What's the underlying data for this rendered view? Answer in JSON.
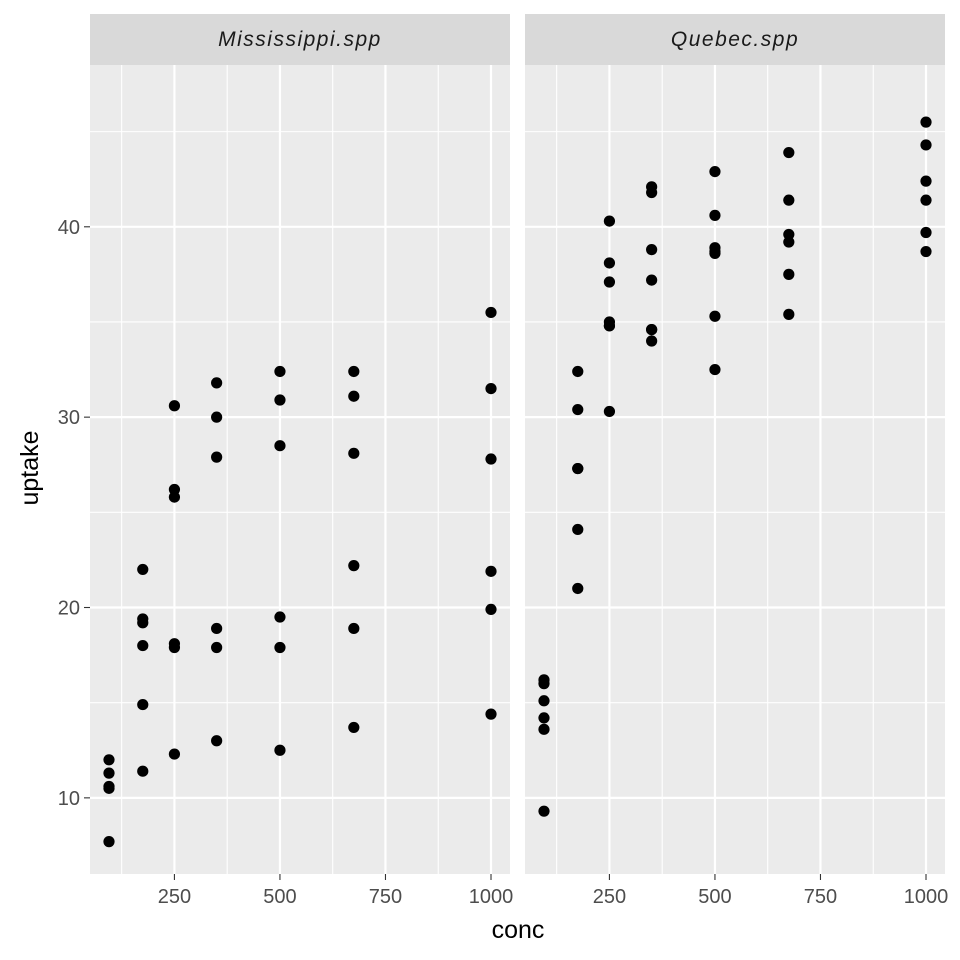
{
  "chart_data": {
    "type": "scatter",
    "xlabel": "conc",
    "ylabel": "uptake",
    "xlim": [
      50,
      1045
    ],
    "ylim": [
      6,
      48.5
    ],
    "x_ticks": [
      250,
      500,
      750,
      1000
    ],
    "y_ticks": [
      10,
      20,
      30,
      40
    ],
    "x_tick_labels": [
      "250",
      "500",
      "750",
      "1000"
    ],
    "y_tick_labels": [
      "10",
      "20",
      "30",
      "40"
    ],
    "grid": true,
    "point_color": "#000000",
    "panel_color": "#ebebeb",
    "strip_color": "#d9d9d9",
    "panels": [
      {
        "label": "Mississippi.spp",
        "x": [
          95,
          95,
          95,
          95,
          95,
          175,
          175,
          175,
          175,
          175,
          175,
          250,
          250,
          250,
          250,
          250,
          250,
          350,
          350,
          350,
          350,
          350,
          350,
          500,
          500,
          500,
          500,
          500,
          500,
          675,
          675,
          675,
          675,
          675,
          675,
          1000,
          1000,
          1000,
          1000,
          1000,
          1000
        ],
        "y": [
          12.0,
          11.3,
          10.6,
          10.5,
          7.7,
          22.0,
          19.4,
          19.2,
          18.0,
          14.9,
          11.4,
          30.6,
          26.2,
          25.8,
          18.1,
          17.9,
          12.3,
          31.8,
          30.0,
          27.9,
          18.9,
          17.9,
          13.0,
          32.4,
          30.9,
          28.5,
          19.5,
          17.9,
          12.5,
          32.4,
          31.1,
          28.1,
          22.2,
          18.9,
          13.7,
          35.5,
          31.5,
          27.8,
          21.9,
          19.9,
          14.4
        ]
      },
      {
        "label": "Quebec.spp",
        "x": [
          95,
          95,
          95,
          95,
          95,
          95,
          175,
          175,
          175,
          175,
          175,
          175,
          250,
          250,
          250,
          250,
          250,
          250,
          250,
          350,
          350,
          350,
          350,
          350,
          350,
          350,
          500,
          500,
          500,
          500,
          500,
          500,
          500,
          675,
          675,
          675,
          675,
          675,
          675,
          1000,
          1000,
          1000,
          1000,
          1000,
          1000
        ],
        "y": [
          16.2,
          16.0,
          15.1,
          14.2,
          13.6,
          9.3,
          32.4,
          30.4,
          27.3,
          27.3,
          24.1,
          21.0,
          40.3,
          38.1,
          37.1,
          35.0,
          34.8,
          34.8,
          30.3,
          42.1,
          41.8,
          38.8,
          37.2,
          34.6,
          34.0,
          34.6,
          42.9,
          40.6,
          38.9,
          38.7,
          38.6,
          35.3,
          32.5,
          43.9,
          41.4,
          39.6,
          39.2,
          37.5,
          35.4,
          45.5,
          44.3,
          42.4,
          41.4,
          39.7,
          38.7
        ]
      }
    ]
  }
}
